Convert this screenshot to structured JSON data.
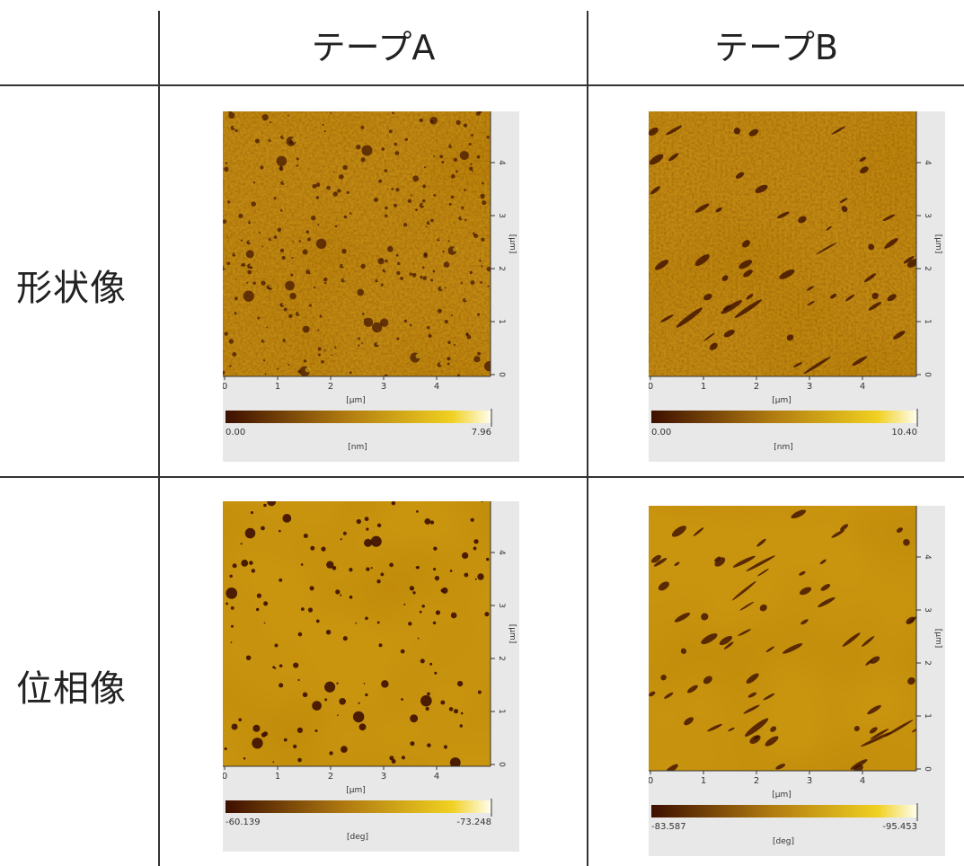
{
  "header": {
    "col_a": "テープA",
    "col_b": "テープB"
  },
  "rows": {
    "topography": "形状像",
    "phase": "位相像"
  },
  "panels": [
    {
      "id": "topo-a",
      "cb_min": "0.00",
      "cb_max": "7.96",
      "unit": "[nm]"
    },
    {
      "id": "topo-b",
      "cb_min": "0.00",
      "cb_max": "10.40",
      "unit": "[nm]"
    },
    {
      "id": "phase-a",
      "cb_min": "-60.139",
      "cb_max": "-73.248",
      "unit": "[deg]"
    },
    {
      "id": "phase-b",
      "cb_min": "-83.587",
      "cb_max": "-95.453",
      "unit": "[deg]"
    }
  ],
  "axes": {
    "unit": "[μm]",
    "x_ticks": [
      "0",
      "1",
      "2",
      "3",
      "4"
    ],
    "y_ticks": [
      "0",
      "1",
      "2",
      "3",
      "4"
    ]
  },
  "colors": {
    "dark": "#3d0f00",
    "mid": "#b07a10",
    "light": "#f0d020",
    "white": "#fffff0",
    "panel_bg": "#e8e8e8",
    "grid_line": "#333333"
  }
}
